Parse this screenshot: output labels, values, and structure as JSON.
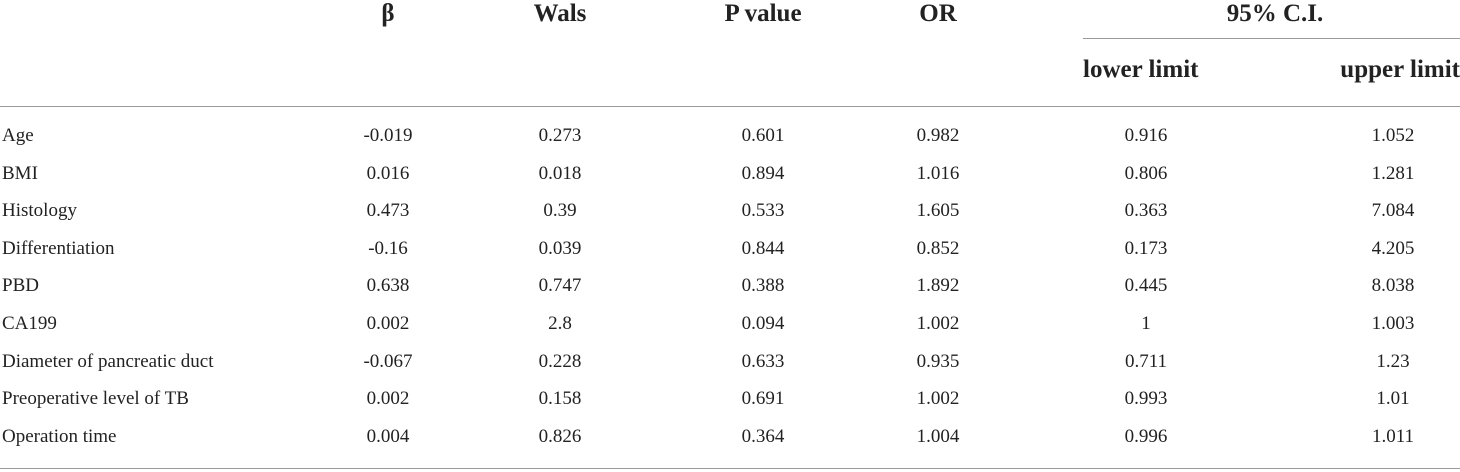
{
  "table": {
    "headers": {
      "beta": "β",
      "wals": "Wals",
      "p_value": "P value",
      "or": "OR",
      "ci": "95% C.I.",
      "lower": "lower limit",
      "upper": "upper limit"
    },
    "rows": [
      {
        "label": "Age",
        "beta": "-0.019",
        "wals": "0.273",
        "p": "0.601",
        "or": "0.982",
        "lower": "0.916",
        "upper": "1.052"
      },
      {
        "label": "BMI",
        "beta": "0.016",
        "wals": "0.018",
        "p": "0.894",
        "or": "1.016",
        "lower": "0.806",
        "upper": "1.281"
      },
      {
        "label": "Histology",
        "beta": "0.473",
        "wals": "0.39",
        "p": "0.533",
        "or": "1.605",
        "lower": "0.363",
        "upper": "7.084"
      },
      {
        "label": "Differentiation",
        "beta": "-0.16",
        "wals": "0.039",
        "p": "0.844",
        "or": "0.852",
        "lower": "0.173",
        "upper": "4.205"
      },
      {
        "label": "PBD",
        "beta": "0.638",
        "wals": "0.747",
        "p": "0.388",
        "or": "1.892",
        "lower": "0.445",
        "upper": "8.038"
      },
      {
        "label": "CA199",
        "beta": "0.002",
        "wals": "2.8",
        "p": "0.094",
        "or": "1.002",
        "lower": "1",
        "upper": "1.003"
      },
      {
        "label": "Diameter of pancreatic duct",
        "beta": "-0.067",
        "wals": "0.228",
        "p": "0.633",
        "or": "0.935",
        "lower": "0.711",
        "upper": "1.23"
      },
      {
        "label": "Preoperative level of TB",
        "beta": "0.002",
        "wals": "0.158",
        "p": "0.691",
        "or": "1.002",
        "lower": "0.993",
        "upper": "1.01"
      },
      {
        "label": "Operation time",
        "beta": "0.004",
        "wals": "0.826",
        "p": "0.364",
        "or": "1.004",
        "lower": "0.996",
        "upper": "1.011"
      }
    ]
  }
}
